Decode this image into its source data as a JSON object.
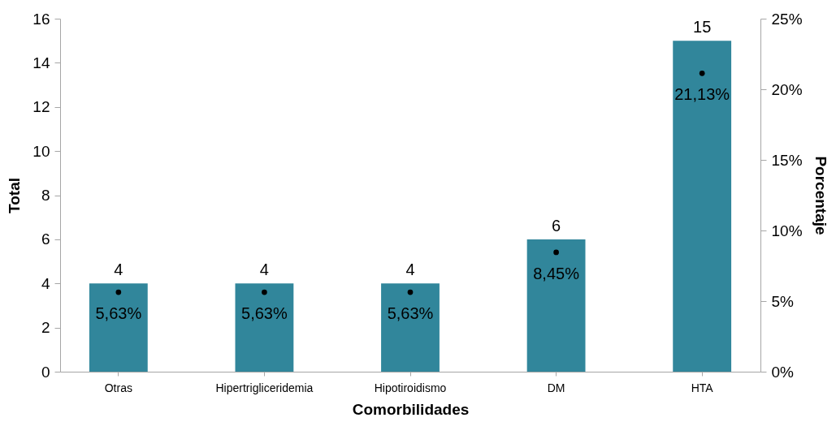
{
  "chart_data": {
    "type": "bar",
    "xlabel": "Comorbilidades",
    "ylabel": "Total",
    "y2label": "Porcentaje",
    "categories": [
      "Otras",
      "Hipertrigliceridemia",
      "Hipotiroidismo",
      "DM",
      "HTA"
    ],
    "series": [
      {
        "color": "#31869b",
        "values": [
          4,
          4,
          4,
          6,
          15
        ]
      },
      {
        "type": "scatter",
        "axis": "y2",
        "marker": "circle",
        "color": "#000000",
        "values": [
          5.63,
          5.63,
          5.63,
          8.45,
          21.13
        ],
        "value_labels": [
          "5,63%",
          "5,63%",
          "5,63%",
          "8,45%",
          "21,13%"
        ]
      }
    ],
    "data_labels": true,
    "ylim": [
      0,
      16
    ],
    "yticks": [
      0,
      2,
      4,
      6,
      8,
      10,
      12,
      14,
      16
    ],
    "y2lim": [
      0,
      25
    ],
    "y2ticks": [
      {
        "value": 0,
        "label": "0%"
      },
      {
        "value": 5,
        "label": "5%"
      },
      {
        "value": 10,
        "label": "10%"
      },
      {
        "value": 15,
        "label": "15%"
      },
      {
        "value": 20,
        "label": "20%"
      },
      {
        "value": 25,
        "label": "25%"
      }
    ],
    "grid": false
  }
}
